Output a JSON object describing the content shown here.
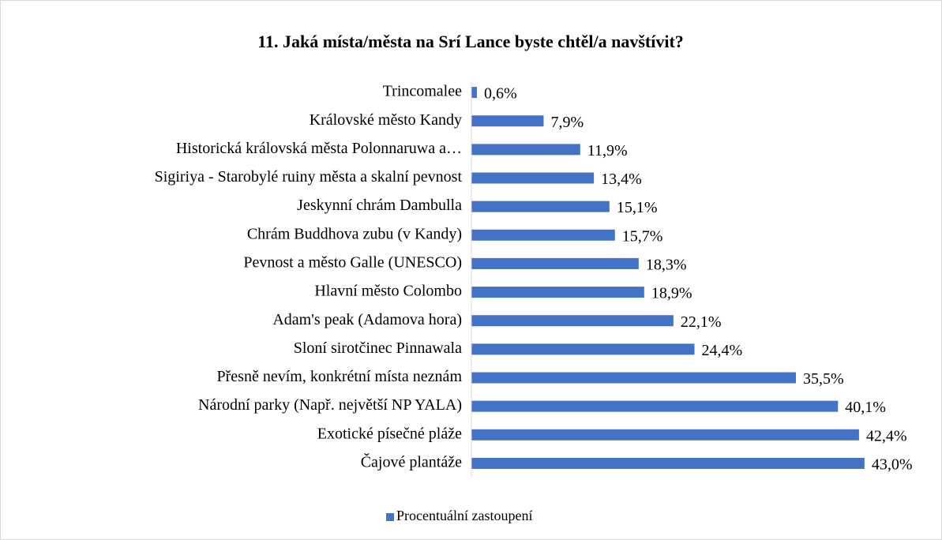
{
  "chart_data": {
    "type": "bar",
    "orientation": "horizontal",
    "title": "11. Jaká místa/města na Srí Lance byste chtěl/a navštívit?",
    "categories": [
      "Trincomalee",
      "Královské město Kandy",
      "Historická královská města Polonnaruwa a…",
      "Sigiriya - Starobylé ruiny města a skalní pevnost",
      "Jeskynní chrám Dambulla",
      "Chrám Buddhova zubu (v Kandy)",
      "Pevnost a město Galle (UNESCO)",
      "Hlavní město Colombo",
      "Adam's peak (Adamova hora)",
      "Sloní sirotčinec Pinnawala",
      "Přesně nevím, konkrétní místa neznám",
      "Národní parky (Např. největší NP YALA)",
      "Exotické písečné pláže",
      "Čajové plantáže"
    ],
    "series": [
      {
        "name": "Procentuální zastoupení",
        "color": "#4472c4",
        "values": [
          0.6,
          7.9,
          11.9,
          13.4,
          15.1,
          15.7,
          18.3,
          18.9,
          22.1,
          24.4,
          35.5,
          40.1,
          42.4,
          43.0
        ],
        "value_labels": [
          "0,6%",
          "7,9%",
          "11,9%",
          "13,4%",
          "15,1%",
          "15,7%",
          "18,3%",
          "18,9%",
          "22,1%",
          "24,4%",
          "35,5%",
          "40,1%",
          "42,4%",
          "43,0%"
        ]
      }
    ],
    "xlim": [
      0,
      45
    ],
    "legend": "bottom"
  }
}
